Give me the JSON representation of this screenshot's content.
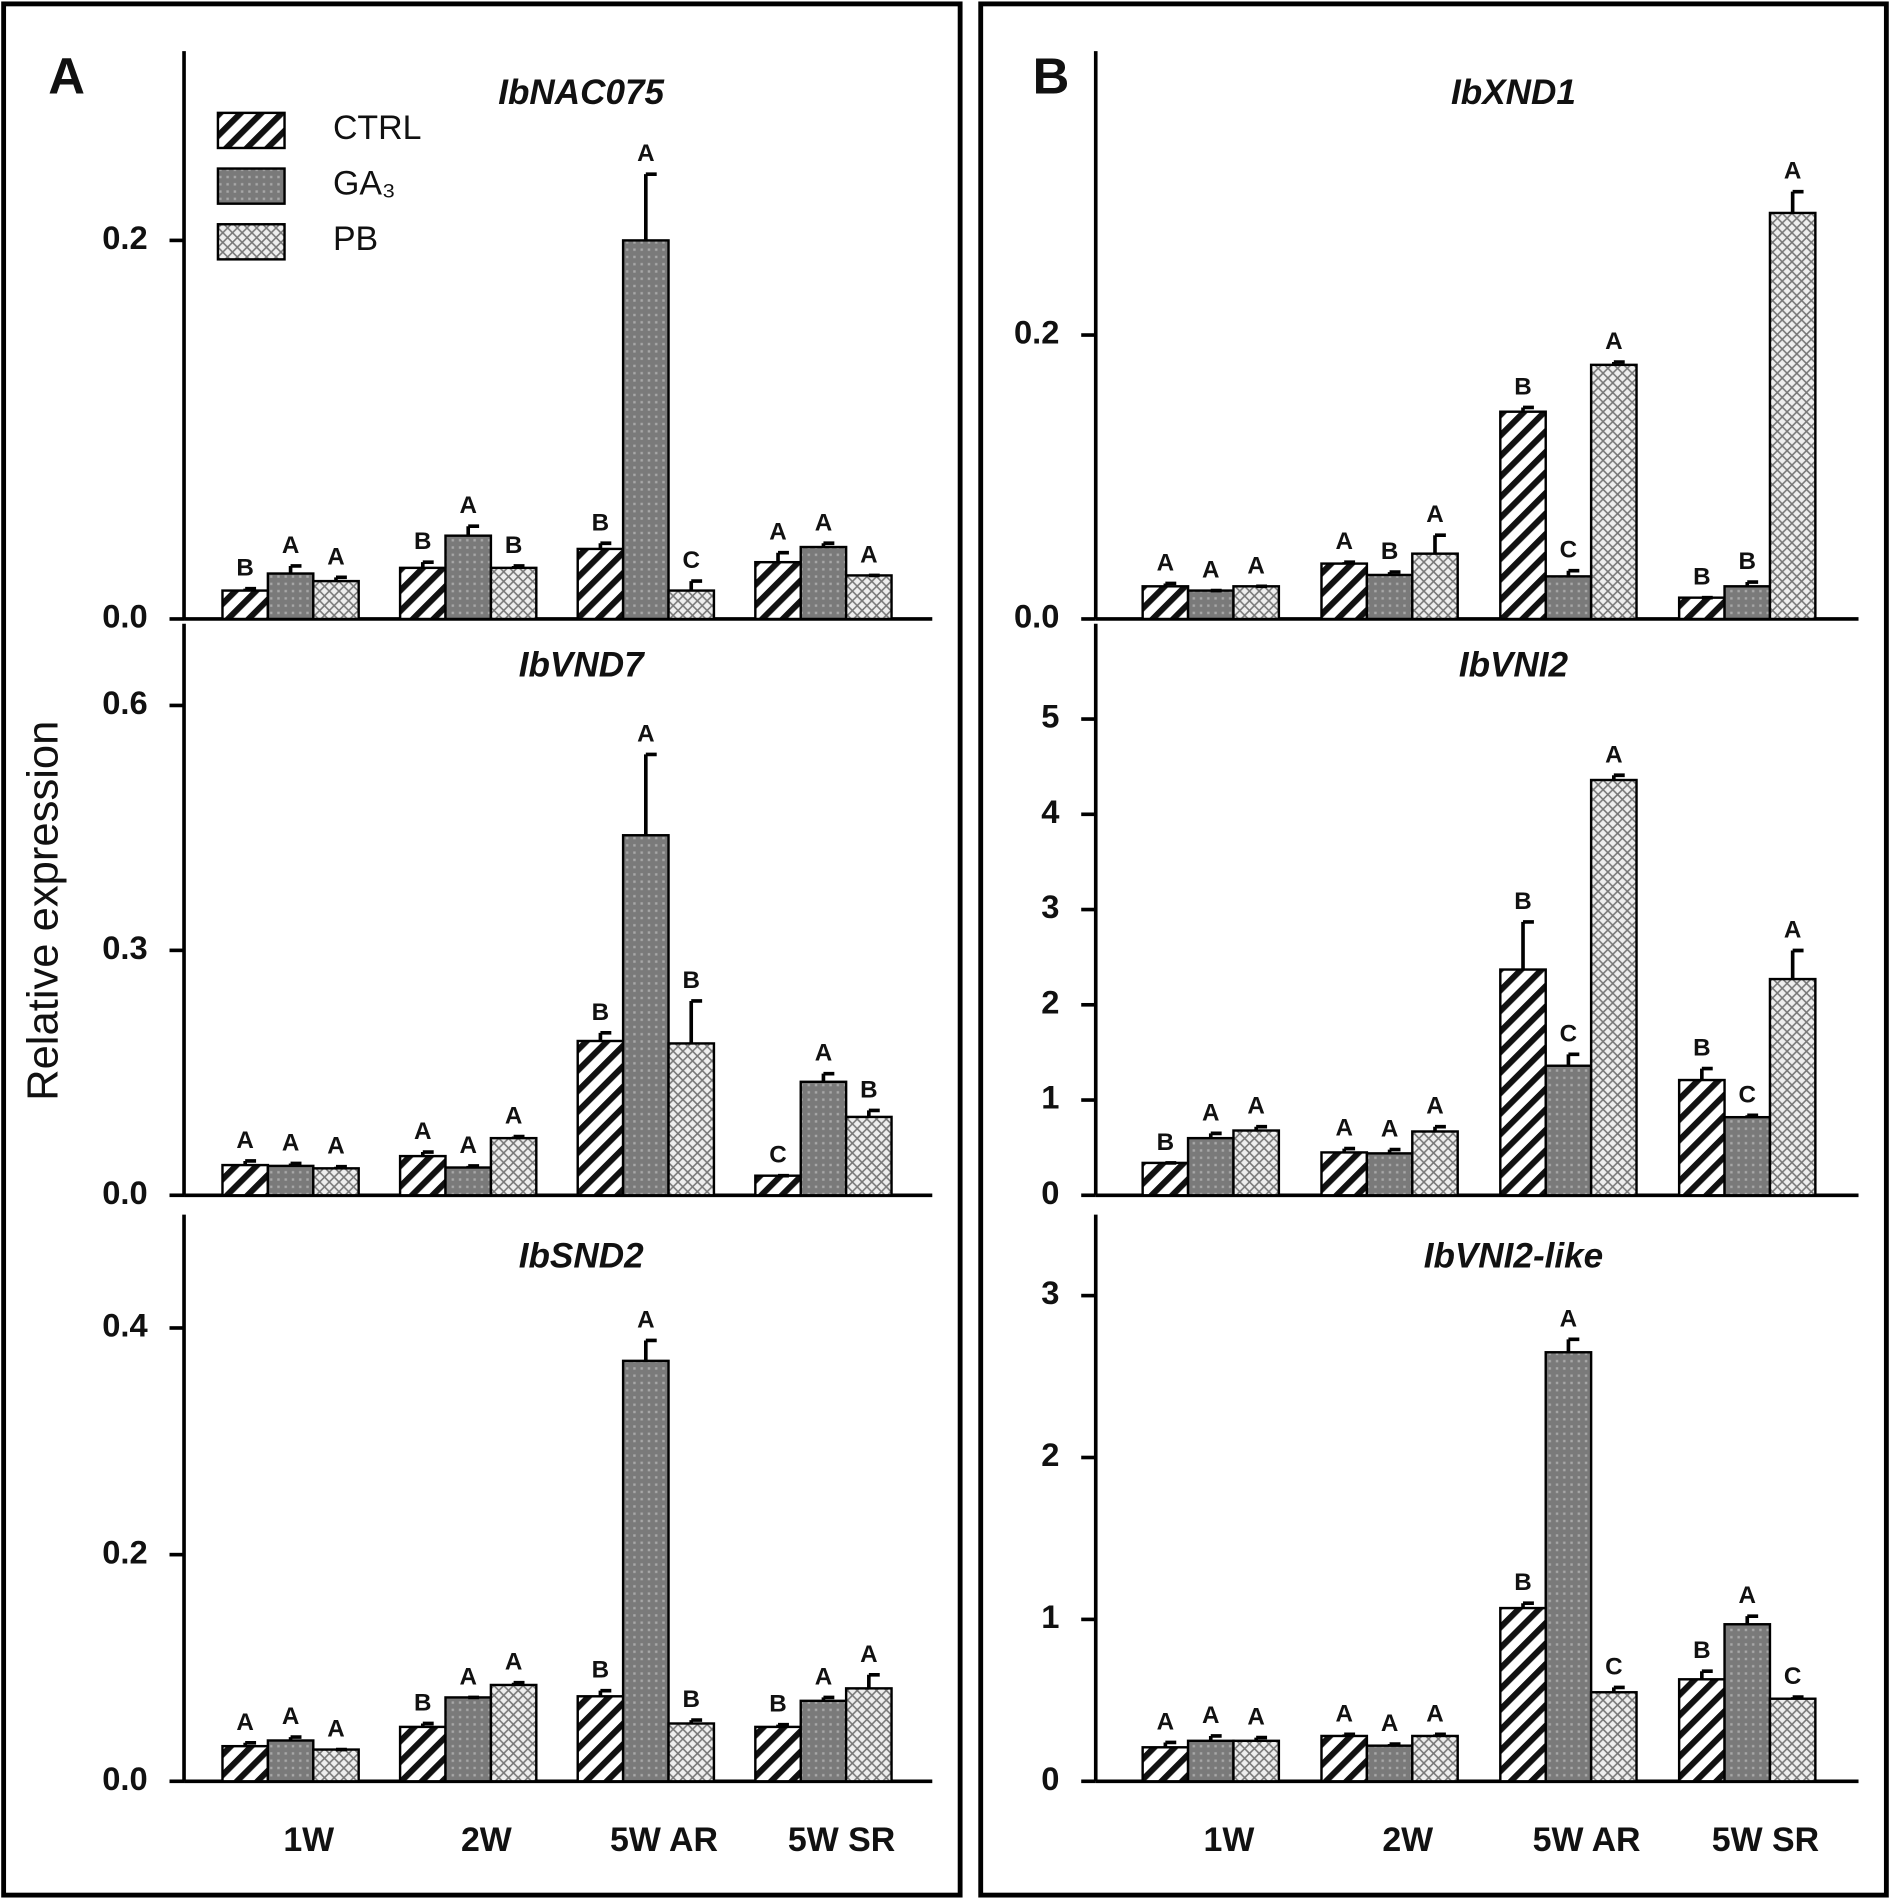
{
  "panels": [
    "A",
    "B"
  ],
  "ylabel": "Relative expression",
  "chart_data": [
    {
      "type": "bar",
      "title": "IbNAC075",
      "ylim": [
        0,
        0.3
      ],
      "yticks": [
        {
          "value": 0,
          "label": "0.0"
        },
        0.2
      ],
      "series": [
        {
          "name": "CTRL",
          "pattern": "hatch",
          "values": [
            0.015,
            0.027,
            0.037,
            0.03
          ],
          "errors": [
            0.001,
            0.003,
            0.003,
            0.005
          ],
          "letters": [
            "B",
            "B",
            "B",
            "A"
          ]
        },
        {
          "name": "GA₃",
          "pattern": "dots",
          "values": [
            0.024,
            0.044,
            0.2,
            0.038
          ],
          "errors": [
            0.004,
            0.005,
            0.035,
            0.002
          ],
          "letters": [
            "A",
            "A",
            "A",
            "A"
          ]
        },
        {
          "name": "PB",
          "pattern": "cross",
          "values": [
            0.02,
            0.027,
            0.015,
            0.023
          ],
          "errors": [
            0.002,
            0.001,
            0.005,
            0
          ],
          "letters": [
            "A",
            "B",
            "C",
            "A"
          ]
        }
      ]
    },
    {
      "type": "bar",
      "title": "IbVND7",
      "ylim": [
        0,
        0.7
      ],
      "yticks": [
        {
          "value": 0,
          "label": "0.0"
        },
        0.3,
        0.6
      ],
      "series": [
        {
          "values": [
            0.037,
            0.048,
            0.189,
            0.024
          ],
          "errors": [
            0.005,
            0.005,
            0.01,
            0
          ],
          "letters": [
            "A",
            "A",
            "B",
            "C"
          ]
        },
        {
          "values": [
            0.036,
            0.034,
            0.441,
            0.139
          ],
          "errors": [
            0.003,
            0.002,
            0.099,
            0.01
          ],
          "letters": [
            "A",
            "A",
            "A",
            "A"
          ]
        },
        {
          "values": [
            0.033,
            0.07,
            0.186,
            0.096
          ],
          "errors": [
            0.002,
            0.002,
            0.052,
            0.008
          ],
          "letters": [
            "A",
            "A",
            "B",
            "B"
          ]
        }
      ]
    },
    {
      "type": "bar",
      "title": "IbSND2",
      "ylim": [
        0,
        0.5
      ],
      "yticks": [
        {
          "value": 0,
          "label": "0.0"
        },
        0.2,
        0.4
      ],
      "categories": [
        "1W",
        "2W",
        "5W AR",
        "5W SR"
      ],
      "series": [
        {
          "values": [
            0.031,
            0.048,
            0.075,
            0.048
          ],
          "errors": [
            0.003,
            0.003,
            0.005,
            0.002
          ],
          "letters": [
            "A",
            "B",
            "B",
            "B"
          ]
        },
        {
          "values": [
            0.036,
            0.074,
            0.371,
            0.071
          ],
          "errors": [
            0.003,
            0,
            0.018,
            0.003
          ],
          "letters": [
            "A",
            "A",
            "A",
            "A"
          ]
        },
        {
          "values": [
            0.028,
            0.085,
            0.051,
            0.082
          ],
          "errors": [
            0,
            0.002,
            0.003,
            0.012
          ],
          "letters": [
            "A",
            "A",
            "B",
            "A"
          ]
        }
      ]
    },
    {
      "type": "bar",
      "title": "IbXND1",
      "ylim": [
        0,
        0.4
      ],
      "yticks": [
        {
          "value": 0,
          "label": "0.0"
        },
        0.2
      ],
      "series": [
        {
          "values": [
            0.023,
            0.039,
            0.146,
            0.015
          ],
          "errors": [
            0.002,
            0.001,
            0.003,
            0
          ],
          "letters": [
            "A",
            "A",
            "B",
            "B"
          ]
        },
        {
          "values": [
            0.02,
            0.031,
            0.03,
            0.023
          ],
          "errors": [
            0,
            0.002,
            0.004,
            0.003
          ],
          "letters": [
            "A",
            "B",
            "C",
            "B"
          ]
        },
        {
          "values": [
            0.023,
            0.046,
            0.179,
            0.286
          ],
          "errors": [
            0,
            0.013,
            0.002,
            0.015
          ],
          "letters": [
            "A",
            "A",
            "A",
            "A"
          ]
        }
      ]
    },
    {
      "type": "bar",
      "title": "IbVNI2",
      "ylim": [
        0,
        6
      ],
      "yticks": [
        0,
        1,
        2,
        3,
        4,
        5
      ],
      "series": [
        {
          "values": [
            0.34,
            0.45,
            2.37,
            1.21
          ],
          "errors": [
            0,
            0.04,
            0.5,
            0.12
          ],
          "letters": [
            "B",
            "A",
            "B",
            "B"
          ]
        },
        {
          "values": [
            0.6,
            0.44,
            1.36,
            0.82
          ],
          "errors": [
            0.05,
            0.04,
            0.12,
            0.02
          ],
          "letters": [
            "A",
            "A",
            "C",
            "C"
          ]
        },
        {
          "values": [
            0.68,
            0.67,
            4.36,
            2.27
          ],
          "errors": [
            0.04,
            0.05,
            0.05,
            0.3
          ],
          "letters": [
            "A",
            "A",
            "A",
            "A"
          ]
        }
      ]
    },
    {
      "type": "bar",
      "title": "IbVNI2-like",
      "ylim": [
        0,
        3.5
      ],
      "yticks": [
        0,
        1,
        2,
        3
      ],
      "categories": [
        "1W",
        "2W",
        "5W AR",
        "5W SR"
      ],
      "series": [
        {
          "values": [
            0.21,
            0.28,
            1.07,
            0.63
          ],
          "errors": [
            0.03,
            0.01,
            0.03,
            0.05
          ],
          "letters": [
            "A",
            "A",
            "B",
            "B"
          ]
        },
        {
          "values": [
            0.25,
            0.22,
            2.65,
            0.97
          ],
          "errors": [
            0.03,
            0.01,
            0.08,
            0.05
          ],
          "letters": [
            "A",
            "A",
            "A",
            "A"
          ]
        },
        {
          "values": [
            0.25,
            0.28,
            0.55,
            0.51
          ],
          "errors": [
            0.02,
            0.01,
            0.03,
            0.01
          ],
          "letters": [
            "A",
            "A",
            "C",
            "C"
          ]
        }
      ]
    }
  ]
}
